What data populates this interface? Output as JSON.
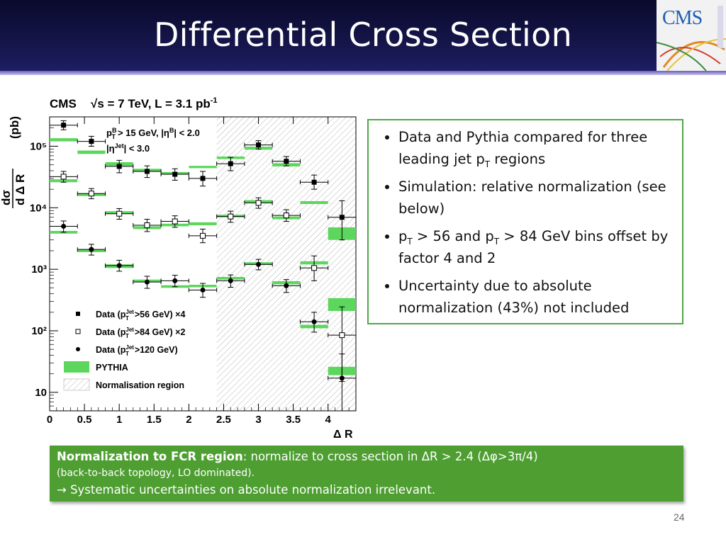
{
  "slide": {
    "title": "Differential Cross Section",
    "logo_text": "CMS",
    "page_number": "24"
  },
  "colors": {
    "accent_green": "#4e9e32",
    "pythia_green": "#5cd65c",
    "header_navy": "#15154a"
  },
  "chart_data": {
    "type": "scatter",
    "title_left": "CMS",
    "title_right": "√s = 7 TeV, L = 3.1 pb",
    "title_right_sup": "-1",
    "cuts_line1": "p",
    "cuts_line1_sup": "B",
    "cuts_line1_sub": "T",
    "cuts_line1_rest": "> 15 GeV, |η",
    "cuts_line1_sup2": "B",
    "cuts_line1_end": "| < 2.0",
    "cuts_line2": "|η",
    "cuts_line2_sup": "Jet",
    "cuts_line2_end": "| < 3.0",
    "ylabel_num": "dσ",
    "ylabel_den": "d Δ R",
    "yunit": "(pb)",
    "xlabel": "Δ R",
    "y_scale": "log",
    "ylim": [
      5,
      300000
    ],
    "xlim": [
      0,
      4.4
    ],
    "x_ticks": [
      "0",
      "0.5",
      "1",
      "1.5",
      "2",
      "2.5",
      "3",
      "3.5",
      "4"
    ],
    "y_ticks": [
      "10",
      "10²",
      "10³",
      "10⁴",
      "10⁵"
    ],
    "y_tick_values": [
      10,
      100,
      1000,
      10000,
      100000
    ],
    "normalisation_region": [
      2.4,
      4.4
    ],
    "legend": [
      {
        "marker": "square-filled",
        "label": "Data (p",
        "sup": "Jet",
        "sub": "T",
        "rest": ">56 GeV) ×4"
      },
      {
        "marker": "square-open",
        "label": "Data (p",
        "sup": "Jet",
        "sub": "T",
        "rest": ">84 GeV) ×2"
      },
      {
        "marker": "circle-filled",
        "label": "Data (p",
        "sup": "Jet",
        "sub": "T",
        "rest": ">120 GeV)"
      },
      {
        "marker": "green-band",
        "label": "PYTHIA"
      },
      {
        "marker": "hatch",
        "label": "Normalisation region"
      }
    ],
    "series": [
      {
        "name": "Data (pT Jet >56 GeV) ×4",
        "marker": "square-filled",
        "x": [
          0.2,
          0.6,
          1.0,
          1.4,
          1.8,
          2.2,
          2.6,
          3.0,
          3.4,
          3.8,
          4.2
        ],
        "xerr": 0.2,
        "y": [
          220000,
          120000,
          47000,
          39000,
          35000,
          30000,
          52000,
          105000,
          57000,
          26000,
          7000
        ],
        "yerr_lo": [
          35000,
          20000,
          10000,
          8000,
          7000,
          7500,
          12000,
          15000,
          9000,
          6000,
          4000
        ],
        "yerr_hi": [
          40000,
          25000,
          12000,
          9000,
          8000,
          9000,
          14000,
          18000,
          11000,
          8000,
          6000
        ]
      },
      {
        "name": "Data (pT Jet >84 GeV) ×2",
        "marker": "square-open",
        "x": [
          0.2,
          0.6,
          1.0,
          1.4,
          1.8,
          2.2,
          2.6,
          3.0,
          3.4,
          3.8,
          4.2
        ],
        "xerr": 0.2,
        "y": [
          32000,
          17000,
          8000,
          5200,
          6000,
          3500,
          7200,
          12000,
          7500,
          1050,
          85
        ],
        "yerr_lo": [
          6000,
          3000,
          1500,
          1100,
          1200,
          800,
          1400,
          2200,
          1500,
          400,
          70
        ],
        "yerr_hi": [
          7000,
          3500,
          1700,
          1300,
          1400,
          1000,
          1600,
          2500,
          1800,
          600,
          160
        ]
      },
      {
        "name": "Data (pT Jet >120 GeV)",
        "marker": "circle-filled",
        "x": [
          0.2,
          0.6,
          1.0,
          1.4,
          1.8,
          2.2,
          2.6,
          3.0,
          3.4,
          3.8,
          4.2
        ],
        "xerr": 0.2,
        "y": [
          5000,
          2100,
          1150,
          620,
          650,
          460,
          650,
          1200,
          540,
          140,
          17
        ],
        "yerr_lo": [
          1000,
          400,
          220,
          130,
          130,
          110,
          140,
          220,
          120,
          45,
          12
        ],
        "yerr_hi": [
          1100,
          450,
          250,
          150,
          150,
          130,
          160,
          250,
          140,
          60,
          25
        ]
      }
    ],
    "pythia_bands": [
      {
        "lo": [
          120000,
          75000,
          48000,
          39000,
          35000,
          44000,
          62000,
          88000,
          47000,
          11500,
          3000
        ],
        "hi": [
          135000,
          85000,
          55000,
          43000,
          38000,
          48000,
          68000,
          98000,
          53000,
          12800,
          4800
        ]
      },
      {
        "lo": [
          26000,
          15500,
          8000,
          4500,
          5000,
          5200,
          7000,
          12000,
          6500,
          1200,
          210
        ],
        "hi": [
          29000,
          17000,
          8800,
          5000,
          5500,
          5800,
          7700,
          13300,
          7200,
          1350,
          340
        ]
      },
      {
        "lo": [
          3800,
          1900,
          1050,
          620,
          500,
          510,
          680,
          1180,
          570,
          110,
          19
        ],
        "hi": [
          4200,
          2100,
          1200,
          680,
          550,
          560,
          750,
          1300,
          640,
          125,
          26
        ]
      }
    ]
  },
  "bullets": [
    {
      "pre": "Data and Pythia compared for three leading jet p",
      "sub": "T",
      "post": " regions"
    },
    {
      "pre": "Simulation: relative normalization (see below)",
      "sub": "",
      "post": ""
    },
    {
      "pre": "p",
      "sub": "T",
      "mid": " > 56 and p",
      "sub2": "T",
      "post": " > 84 GeV bins offset by factor 4 and 2"
    },
    {
      "pre": "Uncertainty due to absolute normalization (43%) not included",
      "sub": "",
      "post": ""
    }
  ],
  "note": {
    "line1_bold": "Normalization to FCR region",
    "line1_rest": ": normalize to cross section in ΔR > 2.4  (Δφ>3π/4)",
    "line2": "(back-to-back topology, LO dominated).",
    "line3": "→ Systematic uncertainties on absolute normalization irrelevant."
  }
}
